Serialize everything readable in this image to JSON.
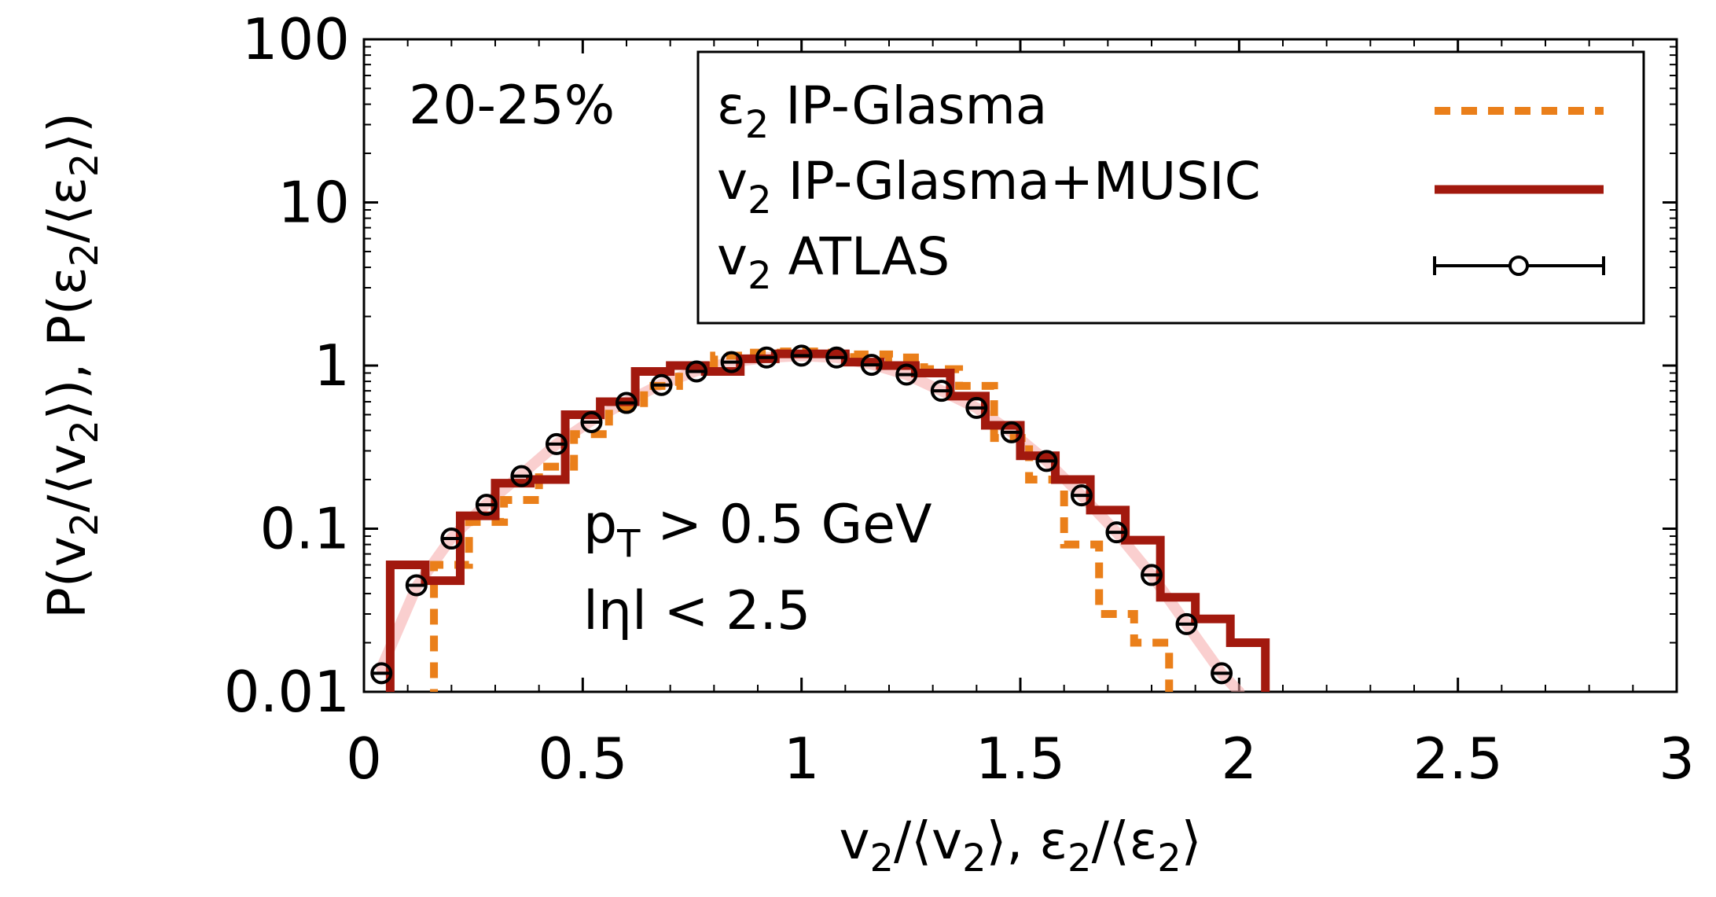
{
  "chart_data": {
    "type": "line",
    "xlabel": {
      "a": "v",
      "b": "2",
      "c": "/⟨v",
      "d": "2",
      "e": "⟩, ε",
      "f": "2",
      "g": "/⟨ε",
      "h": "2",
      "i": "⟩"
    },
    "ylabel": {
      "a": "P(v",
      "b": "2",
      "c": "/⟨v",
      "d": "2",
      "e": "⟩), P(ε",
      "f": "2",
      "g": "/⟨ε",
      "h": "2",
      "i": "⟩)"
    },
    "xlim": [
      0,
      3
    ],
    "ylim": [
      0.01,
      100
    ],
    "yscale": "log",
    "x_ticks": [
      "0",
      "0.5",
      "1",
      "1.5",
      "2",
      "2.5",
      "3"
    ],
    "y_ticks": [
      "0.01",
      "0.1",
      "1",
      "10",
      "100"
    ],
    "legend_position": "top-right",
    "annotations": {
      "centrality": "20-25%",
      "pt_a": "p",
      "pt_b": "T",
      "pt_c": " > 0.5 GeV",
      "eta": "lηl < 2.5"
    },
    "colors": {
      "eps2": "#ea7f1a",
      "v2_music": "#a2190e",
      "atlas": "#000000",
      "band": "#f5a7a7"
    },
    "series": [
      {
        "name": {
          "a": "ε",
          "b": "2",
          "c": " IP-Glasma"
        },
        "style": "dashed-step",
        "edges": [
          0.08,
          0.16,
          0.24,
          0.32,
          0.4,
          0.48,
          0.56,
          0.64,
          0.72,
          0.8,
          0.88,
          0.96,
          1.04,
          1.12,
          1.2,
          1.28,
          1.36,
          1.44,
          1.52,
          1.6,
          1.68,
          1.76,
          1.84,
          1.92
        ],
        "values": [
          0.009,
          0.06,
          0.11,
          0.15,
          0.24,
          0.38,
          0.55,
          0.75,
          1.0,
          1.15,
          1.2,
          1.22,
          1.2,
          1.17,
          1.12,
          0.95,
          0.75,
          0.36,
          0.2,
          0.08,
          0.03,
          0.02,
          0.009
        ]
      },
      {
        "name": {
          "a": "v",
          "b": "2",
          "c": " IP-Glasma+MUSIC"
        },
        "style": "solid-step",
        "edges": [
          0.06,
          0.14,
          0.22,
          0.3,
          0.38,
          0.46,
          0.54,
          0.62,
          0.7,
          0.78,
          0.86,
          0.94,
          1.02,
          1.1,
          1.18,
          1.26,
          1.34,
          1.42,
          1.5,
          1.58,
          1.66,
          1.74,
          1.82,
          1.9,
          1.98,
          2.06
        ],
        "values": [
          0.06,
          0.048,
          0.12,
          0.19,
          0.2,
          0.5,
          0.6,
          0.92,
          1.0,
          0.92,
          1.1,
          1.18,
          1.18,
          1.05,
          1.0,
          0.9,
          0.65,
          0.43,
          0.28,
          0.2,
          0.13,
          0.085,
          0.038,
          0.028,
          0.02
        ]
      },
      {
        "name": {
          "a": "v",
          "b": "2",
          "c": " ATLAS"
        },
        "style": "points",
        "x": [
          0.04,
          0.12,
          0.2,
          0.28,
          0.36,
          0.44,
          0.52,
          0.6,
          0.68,
          0.76,
          0.84,
          0.92,
          1.0,
          1.08,
          1.16,
          1.24,
          1.32,
          1.4,
          1.48,
          1.56,
          1.64,
          1.72,
          1.8,
          1.88,
          1.96
        ],
        "y": [
          0.013,
          0.045,
          0.087,
          0.14,
          0.21,
          0.33,
          0.45,
          0.59,
          0.76,
          0.92,
          1.05,
          1.12,
          1.15,
          1.12,
          1.01,
          0.88,
          0.7,
          0.55,
          0.39,
          0.26,
          0.16,
          0.095,
          0.052,
          0.026,
          0.013
        ]
      }
    ],
    "band": {
      "x": [
        0.04,
        0.12,
        0.2,
        0.28,
        0.36,
        0.44,
        0.52,
        0.6,
        0.68,
        0.76,
        0.84,
        0.92,
        1.0,
        1.08,
        1.16,
        1.24,
        1.32,
        1.4,
        1.48,
        1.56,
        1.64,
        1.72,
        1.8,
        1.88,
        1.96,
        2.0
      ],
      "y": [
        0.014,
        0.044,
        0.088,
        0.142,
        0.215,
        0.33,
        0.46,
        0.6,
        0.77,
        0.93,
        1.05,
        1.12,
        1.15,
        1.12,
        1.02,
        0.88,
        0.7,
        0.55,
        0.39,
        0.26,
        0.16,
        0.095,
        0.052,
        0.026,
        0.013,
        0.01
      ]
    }
  }
}
